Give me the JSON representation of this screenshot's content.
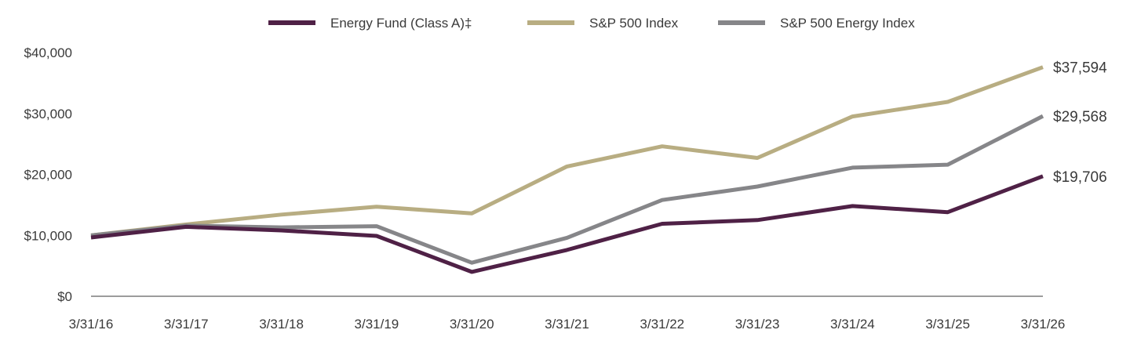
{
  "chart_data": {
    "type": "line",
    "title": "",
    "xlabel": "",
    "ylabel": "",
    "x": [
      "3/31/16",
      "3/31/17",
      "3/31/18",
      "3/31/19",
      "3/31/20",
      "3/31/21",
      "3/31/22",
      "3/31/23",
      "3/31/24",
      "3/31/25",
      "3/31/26"
    ],
    "ylim": [
      0,
      40000
    ],
    "yticks": [
      0,
      10000,
      20000,
      30000,
      40000
    ],
    "ytick_labels": [
      "$0",
      "$10,000",
      "$20,000",
      "$30,000",
      "$40,000"
    ],
    "grid": false,
    "legend_position": "top-center",
    "series": [
      {
        "name": "Energy Fund (Class A)‡",
        "color": "#4f2146",
        "values": [
          9650,
          11400,
          10800,
          9900,
          4000,
          7600,
          11900,
          12500,
          14800,
          13800,
          19706
        ],
        "end_label": "$19,706"
      },
      {
        "name": "S&P 500 Index",
        "color": "#b8ad82",
        "values": [
          10000,
          11800,
          13400,
          14700,
          13600,
          21300,
          24600,
          22700,
          29500,
          31900,
          37594
        ],
        "end_label": "$37,594"
      },
      {
        "name": "S&P 500 Energy Index",
        "color": "#868689",
        "values": [
          10000,
          11600,
          11300,
          11500,
          5500,
          9600,
          15800,
          18000,
          21100,
          21600,
          29568
        ],
        "end_label": "$29,568"
      }
    ]
  }
}
